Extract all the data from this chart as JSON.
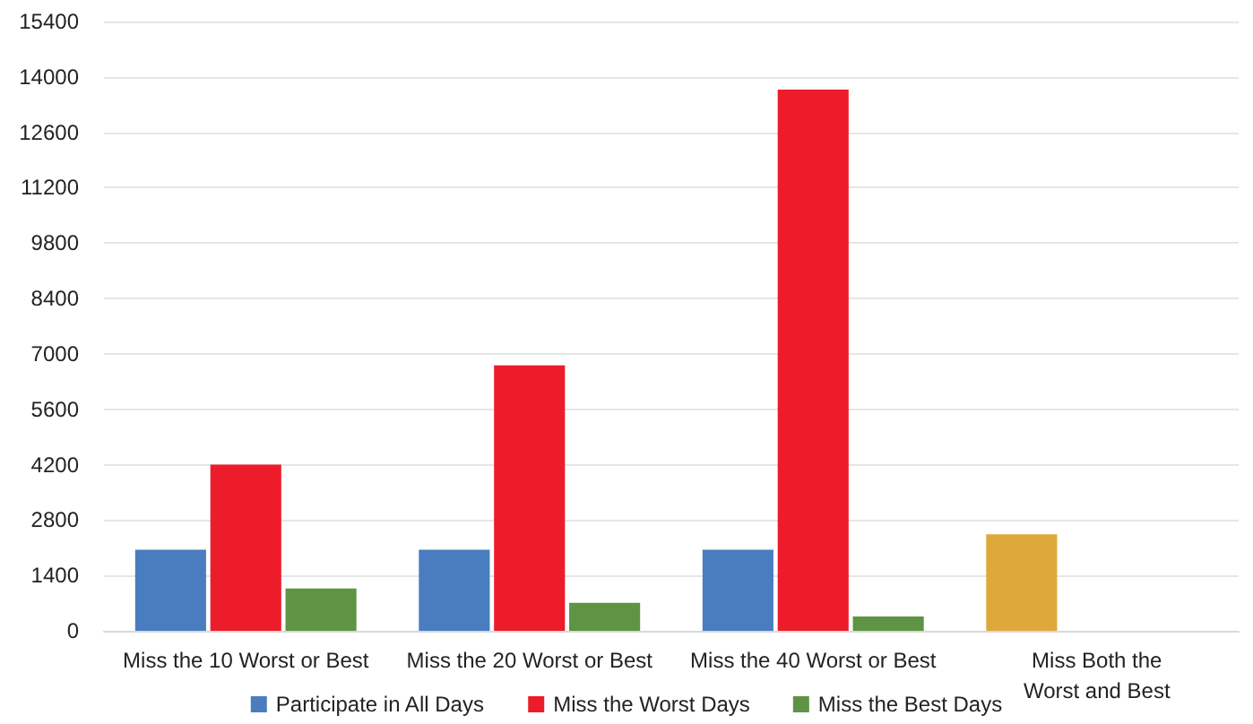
{
  "chart_data": {
    "type": "bar",
    "categories": [
      "Miss the 10 Worst or Best",
      "Miss the 20 Worst or Best",
      "Miss the 40 Worst or Best",
      "Miss Both the\nWorst and Best"
    ],
    "series": [
      {
        "name": "Participate in All Days",
        "color": "#4a7dc0",
        "colors": [
          "#4a7dc0",
          "#4a7dc0",
          "#4a7dc0",
          "#dfa83a"
        ],
        "values": [
          2050,
          2050,
          2050,
          2440
        ]
      },
      {
        "name": "Miss the Worst Days",
        "color": "#ed1c2b",
        "values": [
          4200,
          6710,
          13680,
          null
        ]
      },
      {
        "name": "Miss the Best Days",
        "color": "#5e9443",
        "values": [
          1070,
          710,
          360,
          null
        ]
      }
    ],
    "ylim": [
      0,
      15400
    ],
    "yticks": [
      0,
      1400,
      2800,
      4200,
      5600,
      7000,
      8400,
      9800,
      11200,
      12600,
      14000,
      15400
    ],
    "grid": "y",
    "legend": "bottom"
  }
}
